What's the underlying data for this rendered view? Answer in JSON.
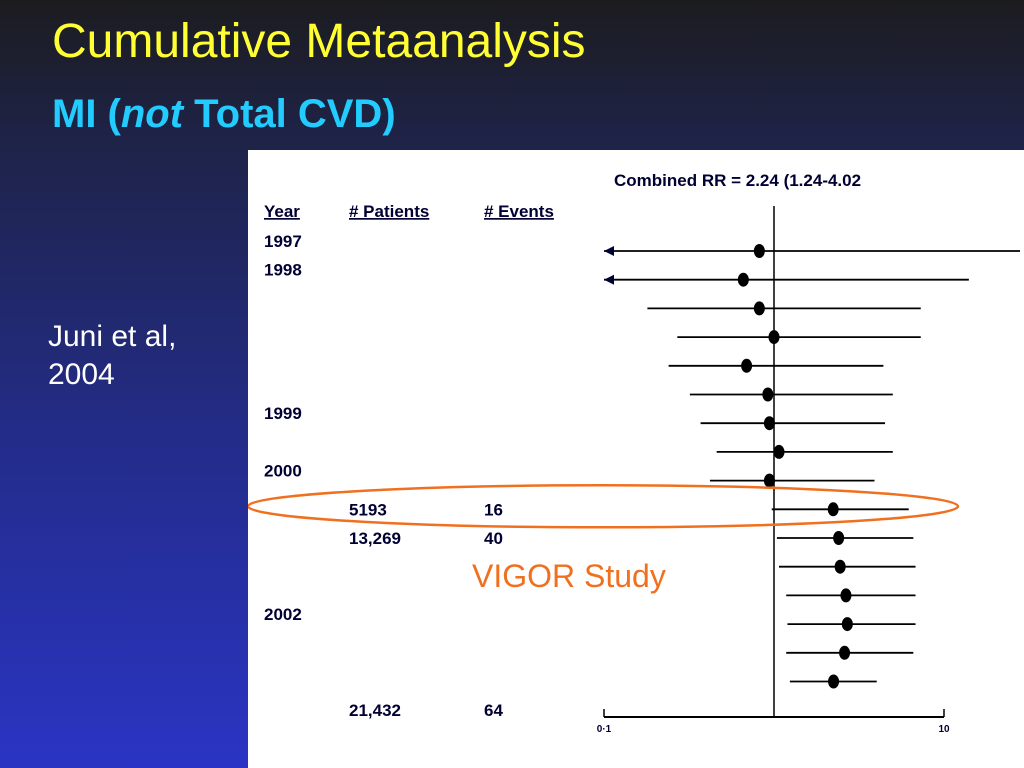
{
  "slide": {
    "title": "Cumulative Metaanalysis",
    "subtitle_pre": "MI (",
    "subtitle_em": "not",
    "subtitle_post": " Total CVD)",
    "citation_line1": "Juni et al,",
    "citation_line2": "2004"
  },
  "colors": {
    "title": "#ffff33",
    "subtitle": "#22ccff",
    "highlight": "#f07020",
    "marks": "#000000"
  },
  "chart_data": {
    "type": "forest",
    "combined_label": "Combined RR  = 2.24 (1.24-4.02",
    "columns": [
      "Year",
      "# Patients",
      "# Events"
    ],
    "x_scale": "log",
    "x_ticks": [
      "0·1",
      "10"
    ],
    "x_range": [
      0.1,
      10
    ],
    "reference_line": 1,
    "year_labels": [
      {
        "row": 0,
        "text": "1997"
      },
      {
        "row": 1,
        "text": "1998"
      },
      {
        "row": 6,
        "text": "1999"
      },
      {
        "row": 8,
        "text": "2000"
      },
      {
        "row": 13,
        "text": "2002"
      }
    ],
    "table_values": [
      {
        "row": 9,
        "patients": "5193",
        "events": "16"
      },
      {
        "row": 10,
        "patients": "13,269",
        "events": "40"
      },
      {
        "row": 16,
        "patients": "21,432",
        "events": "64"
      }
    ],
    "rows": [
      {
        "rr": 0.82,
        "lo": 0.1,
        "hi": 28,
        "lo_arrow": true
      },
      {
        "rr": 0.66,
        "lo": 0.1,
        "hi": 14,
        "lo_arrow": true
      },
      {
        "rr": 0.82,
        "lo": 0.18,
        "hi": 7.3
      },
      {
        "rr": 1.0,
        "lo": 0.27,
        "hi": 7.3
      },
      {
        "rr": 0.69,
        "lo": 0.24,
        "hi": 4.4
      },
      {
        "rr": 0.92,
        "lo": 0.32,
        "hi": 5.0
      },
      {
        "rr": 0.94,
        "lo": 0.37,
        "hi": 4.5
      },
      {
        "rr": 1.07,
        "lo": 0.46,
        "hi": 5.0
      },
      {
        "rr": 0.94,
        "lo": 0.42,
        "hi": 3.9
      },
      {
        "rr": 2.23,
        "lo": 0.97,
        "hi": 6.2
      },
      {
        "rr": 2.4,
        "lo": 1.04,
        "hi": 6.6
      },
      {
        "rr": 2.45,
        "lo": 1.07,
        "hi": 6.8
      },
      {
        "rr": 2.65,
        "lo": 1.18,
        "hi": 6.8
      },
      {
        "rr": 2.7,
        "lo": 1.2,
        "hi": 6.8
      },
      {
        "rr": 2.6,
        "lo": 1.18,
        "hi": 6.6
      },
      {
        "rr": 2.24,
        "lo": 1.24,
        "hi": 4.02
      }
    ],
    "highlight_row": 9,
    "highlight_label": "VIGOR Study"
  }
}
